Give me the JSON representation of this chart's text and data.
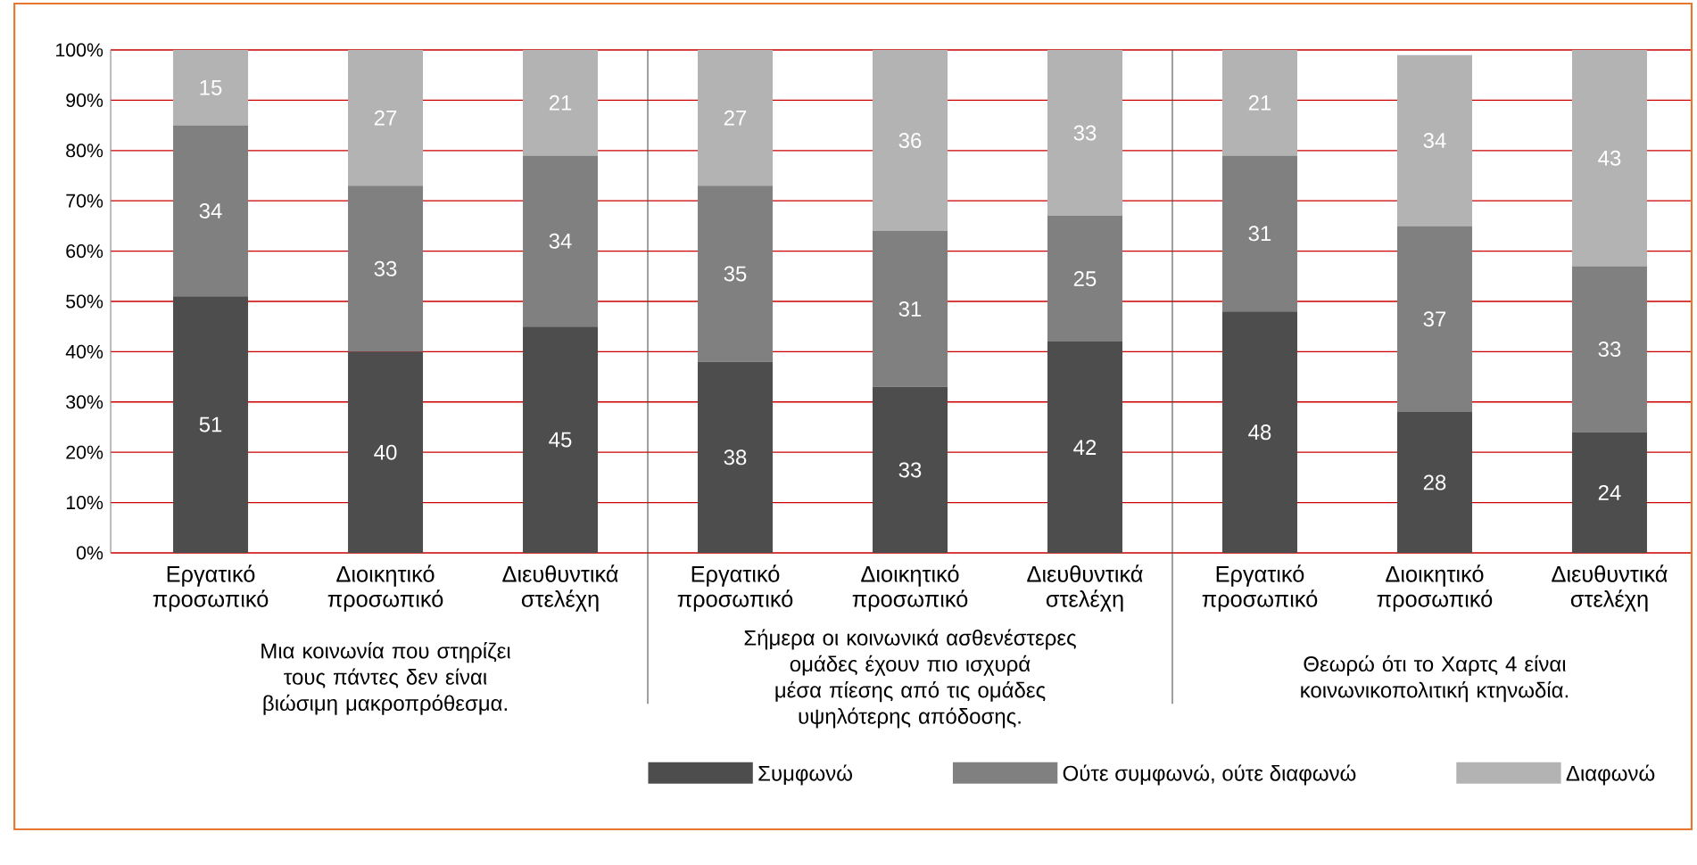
{
  "chart_data": {
    "type": "bar",
    "stacked": true,
    "data_labels": true,
    "grid": "y",
    "legend": "bottom",
    "categories": [
      "Εργατικό προσωπικό",
      "Διοικητικό προσωπικό",
      "Διευθυντικά στελέχη",
      "Εργατικό προσωπικό",
      "Διοικητικό προσωπικό",
      "Διευθυντικά στελέχη",
      "Εργατικό προσωπικό",
      "Διοικητικό προσωπικό",
      "Διευθυντικά στελέχη"
    ],
    "series": [
      {
        "name": "Συμφωνώ",
        "color": "#4d4d4d",
        "values": [
          51,
          40,
          45,
          38,
          33,
          42,
          48,
          28,
          24
        ]
      },
      {
        "name": "Ούτε συμφωνώ, ούτε διαφωνώ",
        "color": "#808080",
        "values": [
          34,
          33,
          34,
          35,
          31,
          25,
          31,
          37,
          33
        ]
      },
      {
        "name": "Διαφωνώ",
        "color": "#b3b3b3",
        "values": [
          15,
          27,
          21,
          27,
          36,
          33,
          21,
          34,
          43
        ]
      }
    ],
    "ylim": [
      0,
      100
    ],
    "yticks": [
      {
        "value": 0,
        "label": "0%"
      },
      {
        "value": 10,
        "label": "10%"
      },
      {
        "value": 20,
        "label": "20%"
      },
      {
        "value": 30,
        "label": "30%"
      },
      {
        "value": 40,
        "label": "40%"
      },
      {
        "value": 50,
        "label": "50%"
      },
      {
        "value": 60,
        "label": "60%"
      },
      {
        "value": 70,
        "label": "70%"
      },
      {
        "value": 80,
        "label": "80%"
      },
      {
        "value": 90,
        "label": "90%"
      },
      {
        "value": 100,
        "label": "100%"
      }
    ],
    "annotations": [
      "Μια κοινωνία που στηρίζει τους πάντες δεν είναι βιώσιμη μακροπρόθεσμα.",
      "Σήμερα οι κοινωνικά ασθενέστερες ομάδες έχουν πιο ισχυρά μέσα πίεσης από τις ομάδες υψηλότερης απόδοσης.",
      "Θεωρώ ότι το Χαρτς 4 είναι κοινωνικοπολιτική κτηνωδία."
    ]
  }
}
